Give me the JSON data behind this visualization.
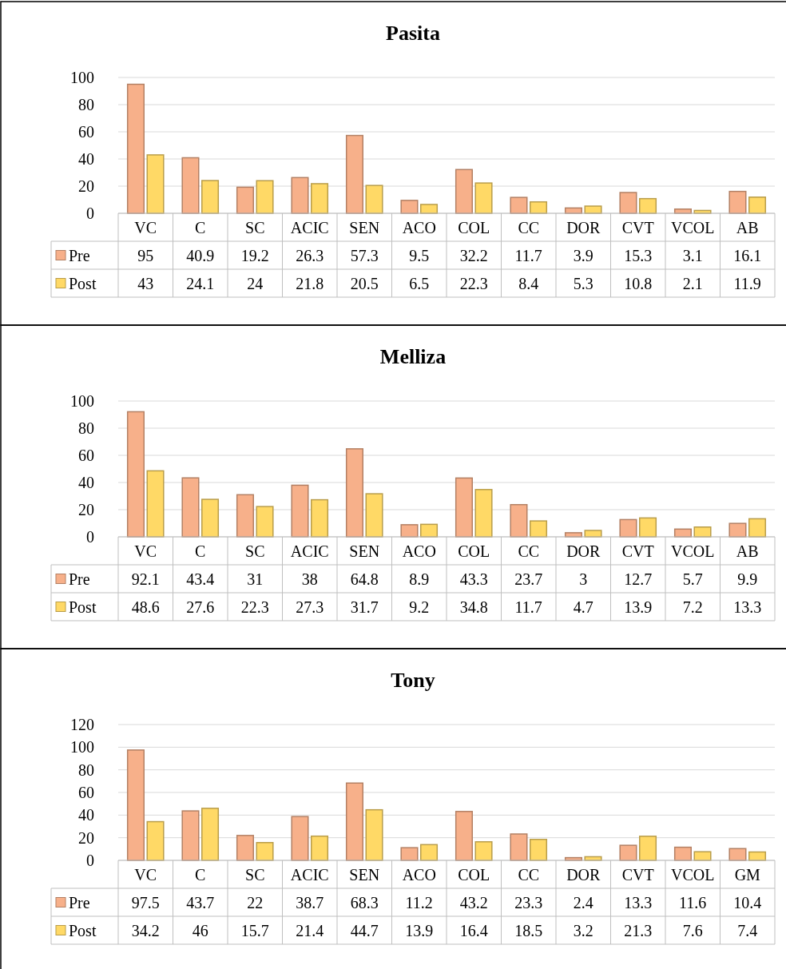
{
  "chart_data": [
    {
      "type": "bar",
      "title": "Pasita",
      "categories": [
        "VC",
        "C",
        "SC",
        "ACIC",
        "SEN",
        "ACO",
        "COL",
        "CC",
        "DOR",
        "CVT",
        "VCOL",
        "AB"
      ],
      "series": [
        {
          "name": "Pre",
          "color": "#f7b08a",
          "values": [
            95,
            40.9,
            19.2,
            26.3,
            57.3,
            9.5,
            32.2,
            11.7,
            3.9,
            15.3,
            3.1,
            16.1
          ]
        },
        {
          "name": "Post",
          "color": "#ffd966",
          "values": [
            43,
            24.1,
            24,
            21.8,
            20.5,
            6.5,
            22.3,
            8.4,
            5.3,
            10.8,
            2.1,
            11.9
          ]
        }
      ],
      "ylim": [
        0,
        100
      ],
      "yticks": [
        0,
        20,
        40,
        60,
        80,
        100
      ],
      "grid": "y",
      "legend": "bottom",
      "data_labels": true
    },
    {
      "type": "bar",
      "title": "Melliza",
      "categories": [
        "VC",
        "C",
        "SC",
        "ACIC",
        "SEN",
        "ACO",
        "COL",
        "CC",
        "DOR",
        "CVT",
        "VCOL",
        "AB"
      ],
      "series": [
        {
          "name": "Pre",
          "color": "#f7b08a",
          "values": [
            92.1,
            43.4,
            31,
            38,
            64.8,
            8.9,
            43.3,
            23.7,
            3,
            12.7,
            5.7,
            9.9
          ]
        },
        {
          "name": "Post",
          "color": "#ffd966",
          "values": [
            48.6,
            27.6,
            22.3,
            27.3,
            31.7,
            9.2,
            34.8,
            11.7,
            4.7,
            13.9,
            7.2,
            13.3
          ]
        }
      ],
      "ylim": [
        0,
        100
      ],
      "yticks": [
        0,
        20,
        40,
        60,
        80,
        100
      ],
      "grid": "y",
      "legend": "bottom",
      "data_labels": true
    },
    {
      "type": "bar",
      "title": "Tony",
      "categories": [
        "VC",
        "C",
        "SC",
        "ACIC",
        "SEN",
        "ACO",
        "COL",
        "CC",
        "DOR",
        "CVT",
        "VCOL",
        "GM"
      ],
      "series": [
        {
          "name": "Pre",
          "color": "#f7b08a",
          "values": [
            97.5,
            43.7,
            22,
            38.7,
            68.3,
            11.2,
            43.2,
            23.3,
            2.4,
            13.3,
            11.6,
            10.4
          ]
        },
        {
          "name": "Post",
          "color": "#ffd966",
          "values": [
            34.2,
            46,
            15.7,
            21.4,
            44.7,
            13.9,
            16.4,
            18.5,
            3.2,
            21.3,
            7.6,
            7.4
          ]
        }
      ],
      "ylim": [
        0,
        120
      ],
      "yticks": [
        0,
        20,
        40,
        60,
        80,
        100,
        120
      ],
      "grid": "y",
      "legend": "bottom",
      "data_labels": true
    }
  ]
}
